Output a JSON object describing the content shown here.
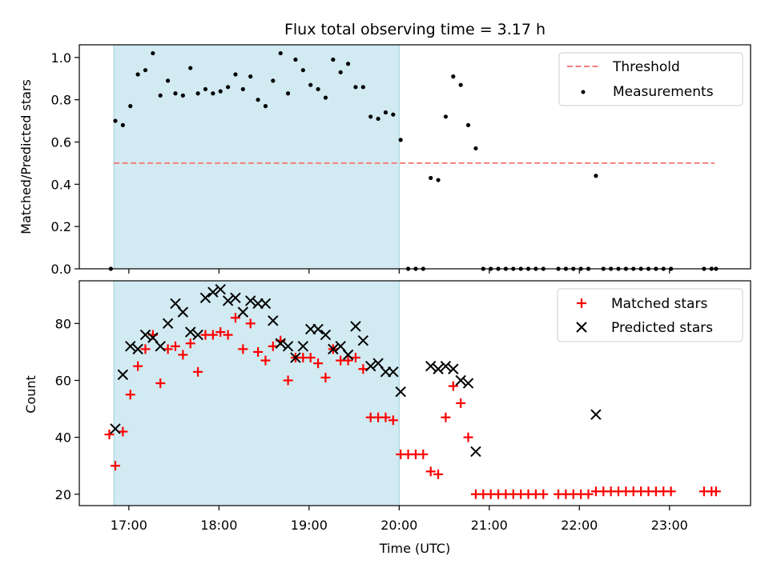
{
  "chart_data": [
    {
      "type": "scatter",
      "title": "Flux total observing time = 3.17 h",
      "xlabel": "",
      "ylabel": "Matched/Predicted stars",
      "xlim": [
        "16:27",
        "23:54"
      ],
      "ylim": [
        0,
        1.06
      ],
      "yticks": [
        "0.0",
        "0.2",
        "0.4",
        "0.6",
        "0.8",
        "1.0"
      ],
      "ytick_values": [
        0,
        0.2,
        0.4,
        0.6,
        0.8,
        1.0
      ],
      "shaded_span": [
        "16:50",
        "20:00"
      ],
      "shade_color": "#add8e6",
      "legend_position": "top-right",
      "threshold": {
        "name": "Threshold",
        "value": 0.5,
        "x_range": [
          "16:50",
          "23:30"
        ],
        "color": "#f08080"
      },
      "series": [
        {
          "name": "Measurements",
          "color": "#000000",
          "points": [
            [
              "16:48",
              0.0
            ],
            [
              "16:51",
              0.7
            ],
            [
              "16:56",
              0.68
            ],
            [
              "17:01",
              0.77
            ],
            [
              "17:06",
              0.92
            ],
            [
              "17:11",
              0.94
            ],
            [
              "17:16",
              1.02
            ],
            [
              "17:21",
              0.82
            ],
            [
              "17:26",
              0.89
            ],
            [
              "17:31",
              0.83
            ],
            [
              "17:36",
              0.82
            ],
            [
              "17:41",
              0.95
            ],
            [
              "17:46",
              0.83
            ],
            [
              "17:51",
              0.85
            ],
            [
              "17:56",
              0.83
            ],
            [
              "18:01",
              0.84
            ],
            [
              "18:06",
              0.86
            ],
            [
              "18:11",
              0.92
            ],
            [
              "18:16",
              0.85
            ],
            [
              "18:21",
              0.91
            ],
            [
              "18:26",
              0.8
            ],
            [
              "18:31",
              0.77
            ],
            [
              "18:36",
              0.89
            ],
            [
              "18:41",
              1.02
            ],
            [
              "18:46",
              0.83
            ],
            [
              "18:51",
              0.99
            ],
            [
              "18:56",
              0.94
            ],
            [
              "19:01",
              0.87
            ],
            [
              "19:06",
              0.85
            ],
            [
              "19:11",
              0.81
            ],
            [
              "19:16",
              0.99
            ],
            [
              "19:21",
              0.93
            ],
            [
              "19:26",
              0.97
            ],
            [
              "19:31",
              0.86
            ],
            [
              "19:36",
              0.86
            ],
            [
              "19:41",
              0.72
            ],
            [
              "19:46",
              0.71
            ],
            [
              "19:51",
              0.74
            ],
            [
              "19:56",
              0.73
            ],
            [
              "20:01",
              0.61
            ],
            [
              "20:06",
              0.0
            ],
            [
              "20:11",
              0.0
            ],
            [
              "20:16",
              0.0
            ],
            [
              "20:21",
              0.43
            ],
            [
              "20:26",
              0.42
            ],
            [
              "20:31",
              0.72
            ],
            [
              "20:36",
              0.91
            ],
            [
              "20:41",
              0.87
            ],
            [
              "20:46",
              0.68
            ],
            [
              "20:51",
              0.57
            ],
            [
              "20:56",
              0.0
            ],
            [
              "21:01",
              0.0
            ],
            [
              "21:06",
              0.0
            ],
            [
              "21:11",
              0.0
            ],
            [
              "21:16",
              0.0
            ],
            [
              "21:21",
              0.0
            ],
            [
              "21:26",
              0.0
            ],
            [
              "21:31",
              0.0
            ],
            [
              "21:36",
              0.0
            ],
            [
              "21:46",
              0.0
            ],
            [
              "21:51",
              0.0
            ],
            [
              "21:56",
              0.0
            ],
            [
              "22:01",
              0.0
            ],
            [
              "22:06",
              0.0
            ],
            [
              "22:11",
              0.44
            ],
            [
              "22:16",
              0.0
            ],
            [
              "22:21",
              0.0
            ],
            [
              "22:26",
              0.0
            ],
            [
              "22:31",
              0.0
            ],
            [
              "22:36",
              0.0
            ],
            [
              "22:41",
              0.0
            ],
            [
              "22:46",
              0.0
            ],
            [
              "22:51",
              0.0
            ],
            [
              "22:56",
              0.0
            ],
            [
              "23:01",
              0.0
            ],
            [
              "23:23",
              0.0
            ],
            [
              "23:28",
              0.0
            ],
            [
              "23:31",
              0.0
            ]
          ]
        }
      ]
    },
    {
      "type": "scatter",
      "xlabel": "Time (UTC)",
      "ylabel": "Count",
      "xlim": [
        "16:27",
        "23:54"
      ],
      "ylim": [
        16,
        95
      ],
      "xticks": [
        "17:00",
        "18:00",
        "19:00",
        "20:00",
        "21:00",
        "22:00",
        "23:00"
      ],
      "yticks": [
        "20",
        "40",
        "60",
        "80"
      ],
      "ytick_values": [
        20,
        40,
        60,
        80
      ],
      "shaded_span": [
        "16:50",
        "20:00"
      ],
      "shade_color": "#add8e6",
      "legend_position": "top-right",
      "series": [
        {
          "name": "Matched stars",
          "color": "#ff0000",
          "marker": "plus",
          "points": [
            [
              "16:47",
              41
            ],
            [
              "16:51",
              30
            ],
            [
              "16:56",
              42
            ],
            [
              "17:01",
              55
            ],
            [
              "17:06",
              65
            ],
            [
              "17:11",
              71
            ],
            [
              "17:16",
              76
            ],
            [
              "17:21",
              59
            ],
            [
              "17:26",
              71
            ],
            [
              "17:31",
              72
            ],
            [
              "17:36",
              69
            ],
            [
              "17:41",
              73
            ],
            [
              "17:46",
              63
            ],
            [
              "17:51",
              76
            ],
            [
              "17:56",
              76
            ],
            [
              "18:01",
              77
            ],
            [
              "18:06",
              76
            ],
            [
              "18:11",
              82
            ],
            [
              "18:16",
              71
            ],
            [
              "18:21",
              80
            ],
            [
              "18:26",
              70
            ],
            [
              "18:31",
              67
            ],
            [
              "18:36",
              72
            ],
            [
              "18:41",
              74
            ],
            [
              "18:46",
              60
            ],
            [
              "18:51",
              68
            ],
            [
              "18:56",
              68
            ],
            [
              "19:01",
              68
            ],
            [
              "19:06",
              66
            ],
            [
              "19:11",
              61
            ],
            [
              "19:16",
              71
            ],
            [
              "19:21",
              67
            ],
            [
              "19:26",
              67
            ],
            [
              "19:31",
              68
            ],
            [
              "19:36",
              64
            ],
            [
              "19:41",
              47
            ],
            [
              "19:46",
              47
            ],
            [
              "19:51",
              47
            ],
            [
              "19:56",
              46
            ],
            [
              "20:01",
              34
            ],
            [
              "20:06",
              34
            ],
            [
              "20:11",
              34
            ],
            [
              "20:16",
              34
            ],
            [
              "20:21",
              28
            ],
            [
              "20:26",
              27
            ],
            [
              "20:31",
              47
            ],
            [
              "20:36",
              58
            ],
            [
              "20:41",
              52
            ],
            [
              "20:46",
              40
            ],
            [
              "20:51",
              20
            ],
            [
              "20:56",
              20
            ],
            [
              "21:01",
              20
            ],
            [
              "21:06",
              20
            ],
            [
              "21:11",
              20
            ],
            [
              "21:16",
              20
            ],
            [
              "21:21",
              20
            ],
            [
              "21:26",
              20
            ],
            [
              "21:31",
              20
            ],
            [
              "21:36",
              20
            ],
            [
              "21:46",
              20
            ],
            [
              "21:51",
              20
            ],
            [
              "21:56",
              20
            ],
            [
              "22:01",
              20
            ],
            [
              "22:06",
              20
            ],
            [
              "22:11",
              21
            ],
            [
              "22:16",
              21
            ],
            [
              "22:21",
              21
            ],
            [
              "22:26",
              21
            ],
            [
              "22:31",
              21
            ],
            [
              "22:36",
              21
            ],
            [
              "22:41",
              21
            ],
            [
              "22:46",
              21
            ],
            [
              "22:51",
              21
            ],
            [
              "22:56",
              21
            ],
            [
              "23:01",
              21
            ],
            [
              "23:23",
              21
            ],
            [
              "23:28",
              21
            ],
            [
              "23:31",
              21
            ]
          ]
        },
        {
          "name": "Predicted stars",
          "color": "#000000",
          "marker": "x",
          "points": [
            [
              "16:51",
              43
            ],
            [
              "16:56",
              62
            ],
            [
              "17:01",
              72
            ],
            [
              "17:06",
              71
            ],
            [
              "17:11",
              76
            ],
            [
              "17:16",
              75
            ],
            [
              "17:21",
              72
            ],
            [
              "17:26",
              80
            ],
            [
              "17:31",
              87
            ],
            [
              "17:36",
              84
            ],
            [
              "17:41",
              77
            ],
            [
              "17:46",
              76
            ],
            [
              "17:51",
              89
            ],
            [
              "17:56",
              91
            ],
            [
              "18:01",
              92
            ],
            [
              "18:06",
              88
            ],
            [
              "18:11",
              89
            ],
            [
              "18:16",
              84
            ],
            [
              "18:21",
              88
            ],
            [
              "18:26",
              87
            ],
            [
              "18:31",
              87
            ],
            [
              "18:36",
              81
            ],
            [
              "18:41",
              73
            ],
            [
              "18:46",
              72
            ],
            [
              "18:51",
              68
            ],
            [
              "18:56",
              72
            ],
            [
              "19:01",
              78
            ],
            [
              "19:06",
              78
            ],
            [
              "19:11",
              76
            ],
            [
              "19:16",
              71
            ],
            [
              "19:21",
              72
            ],
            [
              "19:26",
              69
            ],
            [
              "19:31",
              79
            ],
            [
              "19:36",
              74
            ],
            [
              "19:41",
              65
            ],
            [
              "19:46",
              66
            ],
            [
              "19:51",
              63
            ],
            [
              "19:56",
              63
            ],
            [
              "20:01",
              56
            ],
            [
              "20:21",
              65
            ],
            [
              "20:26",
              64
            ],
            [
              "20:31",
              65
            ],
            [
              "20:36",
              64
            ],
            [
              "20:41",
              60
            ],
            [
              "20:46",
              59
            ],
            [
              "20:51",
              35
            ],
            [
              "22:11",
              48
            ]
          ]
        }
      ]
    }
  ]
}
